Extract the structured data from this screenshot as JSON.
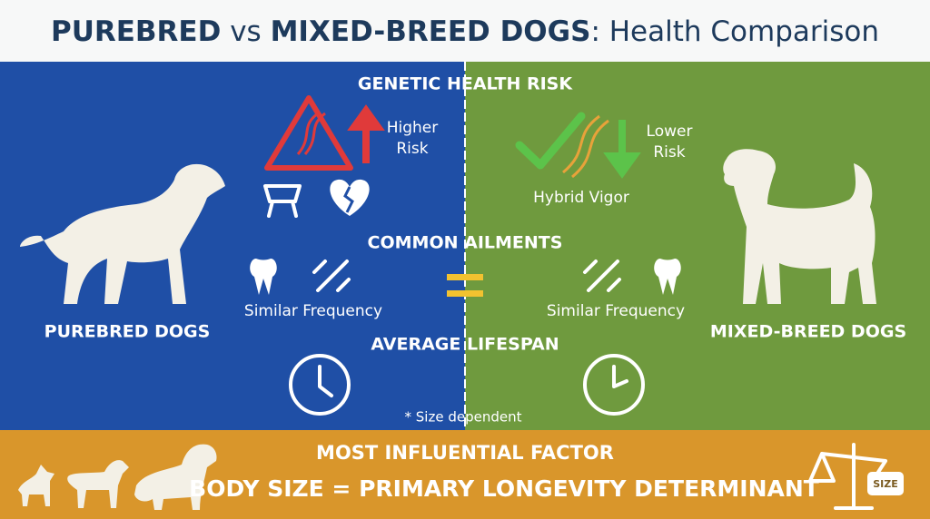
{
  "header": {
    "title_parts": [
      "PUREBRED",
      " vs ",
      "MIXED-BREED DOGS",
      ": Health Comparison"
    ]
  },
  "sections": {
    "genetic": "GENETIC HEALTH RISK",
    "ailments": "COMMON AILMENTS",
    "lifespan": "AVERAGE LIFESPAN"
  },
  "left": {
    "label": "PUREBRED DOGS",
    "risk": [
      "Higher",
      "Risk"
    ],
    "ailments": "Similar Frequency"
  },
  "right": {
    "label": "MIXED-BREED DOGS",
    "risk": [
      "Lower",
      "Risk"
    ],
    "vigor": "Hybrid Vigor",
    "ailments": "Similar Frequency"
  },
  "note": "* Size dependent",
  "footer": {
    "heading": "MOST INFLUENTIAL FACTOR",
    "statement": "BODY SIZE = PRIMARY LONGEVITY DETERMINANT",
    "weight_label": "SIZE"
  }
}
